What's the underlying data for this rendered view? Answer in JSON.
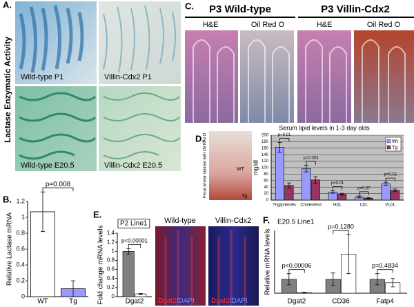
{
  "panels": {
    "a": "A.",
    "b": "B.",
    "c": "C.",
    "d": "D.",
    "e": "E.",
    "f": "F."
  },
  "panel_a": {
    "side_label": "Lactase Enzymatic Activity",
    "captions": [
      "Wild-type P1",
      "Villin-Cdx2 P1",
      "Wild-type E20.5",
      "Villin-Cdx2 E20.5"
    ]
  },
  "panel_c": {
    "groups": [
      "P3 Wild-type",
      "P3 Villin-Cdx2"
    ],
    "stains": [
      "H&E",
      "Oil Red O",
      "H&E",
      "Oil Red O"
    ]
  },
  "panel_d": {
    "image_label": "Fecal smear stained with Oil Red O",
    "image_marks": [
      "WT",
      "Tg"
    ]
  },
  "panel_e": {
    "image_titles": [
      "Wild-type",
      "Villin-Cdx2"
    ],
    "captions": [
      [
        "Dgat2",
        "/DAPI"
      ],
      [
        "Dgat2",
        "/DAPI"
      ]
    ]
  },
  "chart_data": [
    {
      "type": "bar",
      "ylabel": "Relative Lactase mRNA",
      "categories": [
        "WT",
        "Tg"
      ],
      "values": [
        1.07,
        0.1
      ],
      "errors": [
        0.25,
        0.1
      ],
      "colors": [
        "#ffffff",
        "#9999ff"
      ],
      "ylim": [
        0,
        1.2
      ],
      "yticks": [
        0,
        0.2,
        0.4,
        0.6,
        0.8,
        1,
        1.2
      ],
      "p_values": [
        "p=0.008"
      ]
    },
    {
      "type": "grouped_bar",
      "title": "Serum lipid levels in 1-3 day olds",
      "ylabel": "mg/dl",
      "categories": [
        "Triglycerides",
        "Cholesterol",
        "HDL",
        "LDL",
        "VLDL"
      ],
      "series": [
        {
          "name": "Wt",
          "color": "#9999ff",
          "values": [
            163,
            97,
            25,
            10,
            50
          ],
          "errors": [
            15,
            10,
            4,
            3,
            5
          ]
        },
        {
          "name": "Tg",
          "color": "#993366",
          "values": [
            45,
            62,
            18,
            6,
            30
          ],
          "errors": [
            8,
            10,
            3,
            2,
            4
          ]
        }
      ],
      "ylim": [
        0,
        200
      ],
      "yticks": [
        0,
        20,
        40,
        60,
        80,
        100,
        120,
        140,
        160,
        180,
        200
      ],
      "grid": true,
      "background": "#c0c0c0",
      "legend": "upper right",
      "p_values": [
        "p=0.01",
        "p=0.003",
        "p=0.01",
        "p=0.07",
        "p=0.02"
      ]
    },
    {
      "type": "grouped_bar",
      "title": "P2 Line1",
      "ylabel": "Fold change mRNA levels",
      "categories": [
        "Dgat2"
      ],
      "series": [
        {
          "color": "#808080",
          "values": [
            1.0
          ],
          "errors": [
            0.06
          ]
        },
        {
          "color": "#ffffff",
          "values": [
            0.06
          ],
          "errors": [
            0.01
          ]
        }
      ],
      "ylim": [
        0,
        1.4
      ],
      "yticks": [
        0,
        0.2,
        0.4,
        0.6,
        0.8,
        1,
        1.2,
        1.4
      ],
      "p_values": [
        "p<0.00001"
      ]
    },
    {
      "type": "grouped_bar",
      "title": "E20.5 Line1",
      "ylabel": "Relative mRNA levels",
      "categories": [
        "Dgat2",
        "CD36",
        "Fatp4"
      ],
      "series": [
        {
          "color": "#808080",
          "values": [
            1,
            1,
            1
          ],
          "errors": [
            0.4,
            0.45,
            0.4
          ]
        },
        {
          "color": "#ffffff",
          "values": [
            0.05,
            2.8,
            0.75
          ],
          "errors": [
            0.02,
            1.4,
            0.3
          ]
        }
      ],
      "ylim": [
        0,
        4.5
      ],
      "p_values": [
        "p<0.00006",
        "p=0.1280",
        "p=0.4834"
      ]
    }
  ]
}
